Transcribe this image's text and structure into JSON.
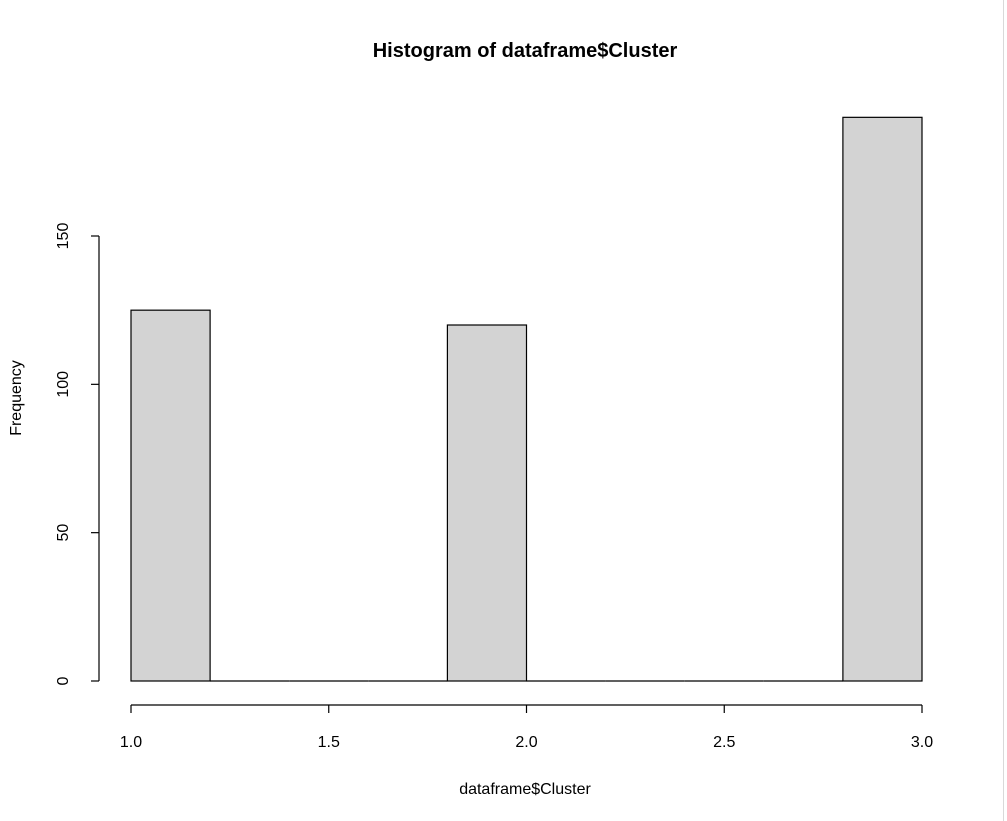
{
  "chart_data": {
    "type": "bar",
    "title": "Histogram of dataframe$Cluster",
    "xlabel": "dataframe$Cluster",
    "ylabel": "Frequency",
    "bins": [
      {
        "x0": 1.0,
        "x1": 1.2,
        "count": 125
      },
      {
        "x0": 1.2,
        "x1": 1.4,
        "count": 0
      },
      {
        "x0": 1.4,
        "x1": 1.6,
        "count": 0
      },
      {
        "x0": 1.6,
        "x1": 1.8,
        "count": 0
      },
      {
        "x0": 1.8,
        "x1": 2.0,
        "count": 120
      },
      {
        "x0": 2.0,
        "x1": 2.2,
        "count": 0
      },
      {
        "x0": 2.2,
        "x1": 2.4,
        "count": 0
      },
      {
        "x0": 2.4,
        "x1": 2.6,
        "count": 0
      },
      {
        "x0": 2.6,
        "x1": 2.8,
        "count": 0
      },
      {
        "x0": 2.8,
        "x1": 3.0,
        "count": 190
      }
    ],
    "xlim": [
      1.0,
      3.0
    ],
    "ylim": [
      0,
      190
    ],
    "x_ticks": [
      1.0,
      1.5,
      2.0,
      2.5,
      3.0
    ],
    "x_tick_labels": [
      "1.0",
      "1.5",
      "2.0",
      "2.5",
      "3.0"
    ],
    "y_ticks": [
      0,
      50,
      100,
      150
    ],
    "y_tick_labels": [
      "0",
      "50",
      "100",
      "150"
    ],
    "bar_fill": "#d3d3d3",
    "bar_stroke": "#000000",
    "grid": false
  }
}
